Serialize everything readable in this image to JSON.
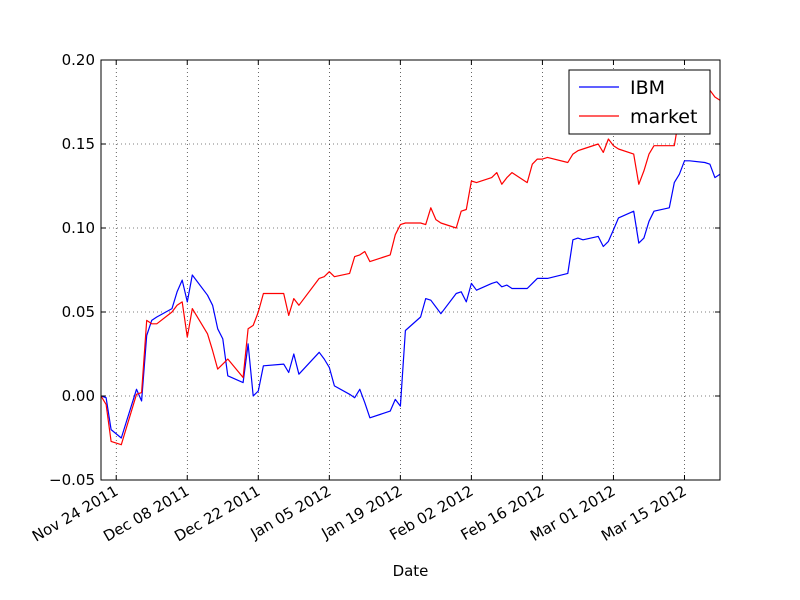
{
  "chart_data": {
    "type": "line",
    "xlabel": "Date",
    "ylabel": "",
    "title": "",
    "x_axis_type": "date",
    "xlim": [
      "2011-11-21",
      "2012-03-22"
    ],
    "ylim": [
      -0.05,
      0.2
    ],
    "grid": true,
    "legend_position": "top-right",
    "x_ticks": [
      "2011-11-24",
      "2011-12-08",
      "2011-12-22",
      "2012-01-05",
      "2012-01-19",
      "2012-02-02",
      "2012-02-16",
      "2012-03-01",
      "2012-03-15"
    ],
    "x_tick_labels": [
      "Nov 24 2011",
      "Dec 08 2011",
      "Dec 22 2011",
      "Jan 05 2012",
      "Jan 19 2012",
      "Feb 02 2012",
      "Feb 16 2012",
      "Mar 01 2012",
      "Mar 15 2012"
    ],
    "y_ticks": [
      -0.05,
      0.0,
      0.05,
      0.1,
      0.15,
      0.2
    ],
    "y_tick_labels": [
      "−0.05",
      "0.00",
      "0.05",
      "0.10",
      "0.15",
      "0.20"
    ],
    "series": [
      {
        "name": "IBM",
        "color": "#0000ff",
        "x": [
          "2011-11-21",
          "2011-11-22",
          "2011-11-23",
          "2011-11-25",
          "2011-11-28",
          "2011-11-29",
          "2011-11-30",
          "2011-12-01",
          "2011-12-02",
          "2011-12-05",
          "2011-12-06",
          "2011-12-07",
          "2011-12-08",
          "2011-12-09",
          "2011-12-12",
          "2011-12-13",
          "2011-12-14",
          "2011-12-15",
          "2011-12-16",
          "2011-12-19",
          "2011-12-20",
          "2011-12-21",
          "2011-12-22",
          "2011-12-23",
          "2011-12-27",
          "2011-12-28",
          "2011-12-29",
          "2011-12-30",
          "2012-01-03",
          "2012-01-04",
          "2012-01-05",
          "2012-01-06",
          "2012-01-09",
          "2012-01-10",
          "2012-01-11",
          "2012-01-12",
          "2012-01-13",
          "2012-01-17",
          "2012-01-18",
          "2012-01-19",
          "2012-01-20",
          "2012-01-23",
          "2012-01-24",
          "2012-01-25",
          "2012-01-26",
          "2012-01-27",
          "2012-01-30",
          "2012-01-31",
          "2012-02-01",
          "2012-02-02",
          "2012-02-03",
          "2012-02-06",
          "2012-02-07",
          "2012-02-08",
          "2012-02-09",
          "2012-02-10",
          "2012-02-13",
          "2012-02-14",
          "2012-02-15",
          "2012-02-16",
          "2012-02-17",
          "2012-02-21",
          "2012-02-22",
          "2012-02-23",
          "2012-02-24",
          "2012-02-27",
          "2012-02-28",
          "2012-02-29",
          "2012-03-01",
          "2012-03-02",
          "2012-03-05",
          "2012-03-06",
          "2012-03-07",
          "2012-03-08",
          "2012-03-09",
          "2012-03-12",
          "2012-03-13",
          "2012-03-14",
          "2012-03-15",
          "2012-03-16",
          "2012-03-19",
          "2012-03-20",
          "2012-03-21",
          "2012-03-22"
        ],
        "y": [
          0.0,
          -0.001,
          -0.02,
          -0.025,
          0.004,
          -0.003,
          0.036,
          0.045,
          0.047,
          0.052,
          0.062,
          0.069,
          0.056,
          0.072,
          0.06,
          0.054,
          0.04,
          0.034,
          0.012,
          0.008,
          0.031,
          0.0,
          0.003,
          0.018,
          0.019,
          0.014,
          0.025,
          0.013,
          0.026,
          0.022,
          0.017,
          0.006,
          0.001,
          -0.001,
          0.004,
          -0.004,
          -0.013,
          -0.009,
          -0.002,
          -0.006,
          0.039,
          0.047,
          0.058,
          0.057,
          0.053,
          0.049,
          0.061,
          0.062,
          0.056,
          0.067,
          0.063,
          0.067,
          0.068,
          0.065,
          0.066,
          0.064,
          0.064,
          0.067,
          0.07,
          0.07,
          0.07,
          0.073,
          0.093,
          0.094,
          0.093,
          0.095,
          0.089,
          0.092,
          0.099,
          0.106,
          0.11,
          0.091,
          0.094,
          0.104,
          0.11,
          0.112,
          0.127,
          0.132,
          0.14,
          0.14,
          0.139,
          0.138,
          0.13,
          0.132
        ]
      },
      {
        "name": "market",
        "color": "#ff0000",
        "x": [
          "2011-11-21",
          "2011-11-22",
          "2011-11-23",
          "2011-11-25",
          "2011-11-28",
          "2011-11-29",
          "2011-11-30",
          "2011-12-01",
          "2011-12-02",
          "2011-12-05",
          "2011-12-06",
          "2011-12-07",
          "2011-12-08",
          "2011-12-09",
          "2011-12-12",
          "2011-12-13",
          "2011-12-14",
          "2011-12-15",
          "2011-12-16",
          "2011-12-19",
          "2011-12-20",
          "2011-12-21",
          "2011-12-22",
          "2011-12-23",
          "2011-12-27",
          "2011-12-28",
          "2011-12-29",
          "2011-12-30",
          "2012-01-03",
          "2012-01-04",
          "2012-01-05",
          "2012-01-06",
          "2012-01-09",
          "2012-01-10",
          "2012-01-11",
          "2012-01-12",
          "2012-01-13",
          "2012-01-17",
          "2012-01-18",
          "2012-01-19",
          "2012-01-20",
          "2012-01-23",
          "2012-01-24",
          "2012-01-25",
          "2012-01-26",
          "2012-01-27",
          "2012-01-30",
          "2012-01-31",
          "2012-02-01",
          "2012-02-02",
          "2012-02-03",
          "2012-02-06",
          "2012-02-07",
          "2012-02-08",
          "2012-02-09",
          "2012-02-10",
          "2012-02-13",
          "2012-02-14",
          "2012-02-15",
          "2012-02-16",
          "2012-02-17",
          "2012-02-21",
          "2012-02-22",
          "2012-02-23",
          "2012-02-24",
          "2012-02-27",
          "2012-02-28",
          "2012-02-29",
          "2012-03-01",
          "2012-03-02",
          "2012-03-05",
          "2012-03-06",
          "2012-03-07",
          "2012-03-08",
          "2012-03-09",
          "2012-03-12",
          "2012-03-13",
          "2012-03-14",
          "2012-03-15",
          "2012-03-16",
          "2012-03-19",
          "2012-03-20",
          "2012-03-21",
          "2012-03-22"
        ],
        "y": [
          0.0,
          -0.005,
          -0.027,
          -0.029,
          0.001,
          0.002,
          0.045,
          0.043,
          0.043,
          0.05,
          0.054,
          0.056,
          0.035,
          0.052,
          0.037,
          0.027,
          0.016,
          0.019,
          0.022,
          0.011,
          0.04,
          0.042,
          0.05,
          0.061,
          0.061,
          0.048,
          0.058,
          0.054,
          0.07,
          0.071,
          0.074,
          0.071,
          0.073,
          0.083,
          0.084,
          0.086,
          0.08,
          0.084,
          0.096,
          0.102,
          0.103,
          0.103,
          0.102,
          0.112,
          0.105,
          0.103,
          0.1,
          0.11,
          0.111,
          0.128,
          0.127,
          0.13,
          0.133,
          0.126,
          0.13,
          0.133,
          0.127,
          0.138,
          0.141,
          0.141,
          0.142,
          0.139,
          0.144,
          0.146,
          0.147,
          0.15,
          0.145,
          0.153,
          0.149,
          0.147,
          0.144,
          0.126,
          0.134,
          0.144,
          0.149,
          0.149,
          0.149,
          0.167,
          0.18,
          0.18,
          0.184,
          0.182,
          0.178,
          0.176
        ]
      }
    ]
  }
}
